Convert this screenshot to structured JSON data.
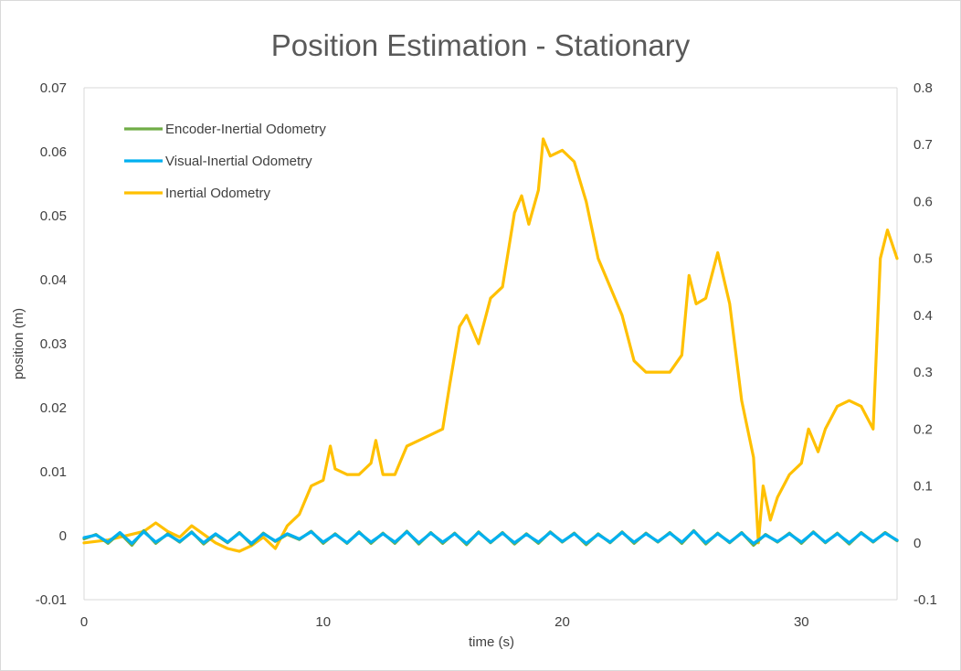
{
  "chart_data": {
    "type": "line",
    "title": "Position Estimation - Stationary",
    "xlabel": "time (s)",
    "ylabel": "position (m)",
    "y2label": "",
    "xlim": [
      0,
      34
    ],
    "ylim": [
      -0.01,
      0.07
    ],
    "y2lim": [
      -0.1,
      0.8
    ],
    "x_ticks": [
      "0",
      "10",
      "20",
      "30"
    ],
    "y_ticks": [
      "-0.01",
      "0",
      "0.01",
      "0.02",
      "0.03",
      "0.04",
      "0.05",
      "0.06",
      "0.07"
    ],
    "y2_ticks": [
      "-0.1",
      "0",
      "0.1",
      "0.2",
      "0.3",
      "0.4",
      "0.5",
      "0.6",
      "0.7",
      "0.8"
    ],
    "grid": false,
    "legend_position": "top-left",
    "series": [
      {
        "name": "Encoder-Inertial Odometry",
        "color": "#70AD47",
        "axis": "left",
        "x": [
          0,
          0.5,
          1,
          1.5,
          2,
          2.5,
          3,
          3.5,
          4,
          4.5,
          5,
          5.5,
          6,
          6.5,
          7,
          7.5,
          8,
          8.5,
          9,
          9.5,
          10,
          10.5,
          11,
          11.5,
          12,
          12.5,
          13,
          13.5,
          14,
          14.5,
          15,
          15.5,
          16,
          16.5,
          17,
          17.5,
          18,
          18.5,
          19,
          19.5,
          20,
          20.5,
          21,
          21.5,
          22,
          22.5,
          23,
          23.5,
          24,
          24.5,
          25,
          25.5,
          26,
          26.5,
          27,
          27.5,
          28,
          28.5,
          29,
          29.5,
          30,
          30.5,
          31,
          31.5,
          32,
          32.5,
          33,
          33.5,
          34
        ],
        "y": [
          -0.0005,
          0.0002,
          -0.0012,
          0.0004,
          -0.0015,
          0.0008,
          -0.0012,
          0.0003,
          -0.001,
          0.0006,
          -0.0013,
          0.0002,
          -0.0011,
          0.0005,
          -0.0014,
          0.0004,
          -0.0009,
          0.0002,
          -0.0006,
          0.0007,
          -0.0012,
          0.0003,
          -0.0012,
          0.0006,
          -0.0012,
          0.0004,
          -0.0012,
          0.0007,
          -0.0013,
          0.0005,
          -0.0012,
          0.0004,
          -0.0014,
          0.0006,
          -0.0011,
          0.0005,
          -0.0013,
          0.0003,
          -0.0012,
          0.0006,
          -0.001,
          0.0004,
          -0.0014,
          0.0003,
          -0.0011,
          0.0006,
          -0.0012,
          0.0004,
          -0.001,
          0.0005,
          -0.0012,
          0.0008,
          -0.0013,
          0.0004,
          -0.0011,
          0.0005,
          -0.0015,
          0.0002,
          -0.001,
          0.0004,
          -0.0012,
          0.0006,
          -0.0011,
          0.0004,
          -0.0013,
          0.0005,
          -0.001,
          0.0005,
          -0.0008
        ]
      },
      {
        "name": "Visual-Inertial Odometry",
        "color": "#00B0F0",
        "axis": "left",
        "x": [
          0,
          0.5,
          1,
          1.5,
          2,
          2.5,
          3,
          3.5,
          4,
          4.5,
          5,
          5.5,
          6,
          6.5,
          7,
          7.5,
          8,
          8.5,
          9,
          9.5,
          10,
          10.5,
          11,
          11.5,
          12,
          12.5,
          13,
          13.5,
          14,
          14.5,
          15,
          15.5,
          16,
          16.5,
          17,
          17.5,
          18,
          18.5,
          19,
          19.5,
          20,
          20.5,
          21,
          21.5,
          22,
          22.5,
          23,
          23.5,
          24,
          24.5,
          25,
          25.5,
          26,
          26.5,
          27,
          27.5,
          28,
          28.5,
          29,
          29.5,
          30,
          30.5,
          31,
          31.5,
          32,
          32.5,
          33,
          33.5,
          34
        ],
        "y": [
          -0.0003,
          0.0001,
          -0.001,
          0.0005,
          -0.0012,
          0.0006,
          -0.001,
          0.0002,
          -0.0009,
          0.0005,
          -0.0011,
          0.0003,
          -0.001,
          0.0004,
          -0.0012,
          0.0003,
          -0.0008,
          0.0003,
          -0.0005,
          0.0006,
          -0.001,
          0.0002,
          -0.0011,
          0.0005,
          -0.001,
          0.0003,
          -0.001,
          0.0006,
          -0.0011,
          0.0004,
          -0.001,
          0.0003,
          -0.0012,
          0.0005,
          -0.001,
          0.0004,
          -0.0011,
          0.0002,
          -0.001,
          0.0005,
          -0.0009,
          0.0003,
          -0.0012,
          0.0002,
          -0.001,
          0.0005,
          -0.001,
          0.0003,
          -0.0009,
          0.0004,
          -0.001,
          0.0007,
          -0.0011,
          0.0003,
          -0.001,
          0.0004,
          -0.0012,
          0.0001,
          -0.0009,
          0.0003,
          -0.001,
          0.0005,
          -0.001,
          0.0003,
          -0.0011,
          0.0004,
          -0.0009,
          0.0004,
          -0.0007
        ]
      },
      {
        "name": "Inertial Odometry",
        "color": "#FFC000",
        "axis": "right",
        "x": [
          0,
          1,
          2,
          2.5,
          3,
          3.5,
          4,
          4.5,
          5,
          5.5,
          6,
          6.5,
          7,
          7.5,
          8,
          8.5,
          9,
          9.5,
          10,
          10.3,
          10.5,
          11,
          11.5,
          12,
          12.2,
          12.5,
          13,
          13.5,
          14,
          14.5,
          15,
          15.3,
          15.7,
          16,
          16.5,
          17,
          17.5,
          18,
          18.3,
          18.6,
          19,
          19.2,
          19.5,
          20,
          20.5,
          21,
          21.5,
          22,
          22.5,
          23,
          23.5,
          24,
          24.5,
          25,
          25.3,
          25.6,
          26,
          26.5,
          27,
          27.5,
          28,
          28.2,
          28.4,
          28.7,
          29,
          29.5,
          30,
          30.3,
          30.7,
          31,
          31.5,
          32,
          32.5,
          33,
          33.3,
          33.6,
          34
        ],
        "y": [
          0.0,
          0.005,
          0.015,
          0.02,
          0.035,
          0.02,
          0.01,
          0.03,
          0.015,
          0.0,
          -0.01,
          -0.015,
          -0.005,
          0.01,
          -0.01,
          0.03,
          0.05,
          0.1,
          0.11,
          0.17,
          0.13,
          0.12,
          0.12,
          0.14,
          0.18,
          0.12,
          0.12,
          0.17,
          0.18,
          0.19,
          0.2,
          0.28,
          0.38,
          0.4,
          0.35,
          0.43,
          0.45,
          0.58,
          0.61,
          0.56,
          0.62,
          0.71,
          0.68,
          0.69,
          0.67,
          0.6,
          0.5,
          0.45,
          0.4,
          0.32,
          0.3,
          0.3,
          0.3,
          0.33,
          0.47,
          0.42,
          0.43,
          0.51,
          0.42,
          0.25,
          0.15,
          0.0,
          0.1,
          0.04,
          0.08,
          0.12,
          0.14,
          0.2,
          0.16,
          0.2,
          0.24,
          0.25,
          0.24,
          0.2,
          0.5,
          0.55,
          0.5
        ]
      }
    ]
  }
}
